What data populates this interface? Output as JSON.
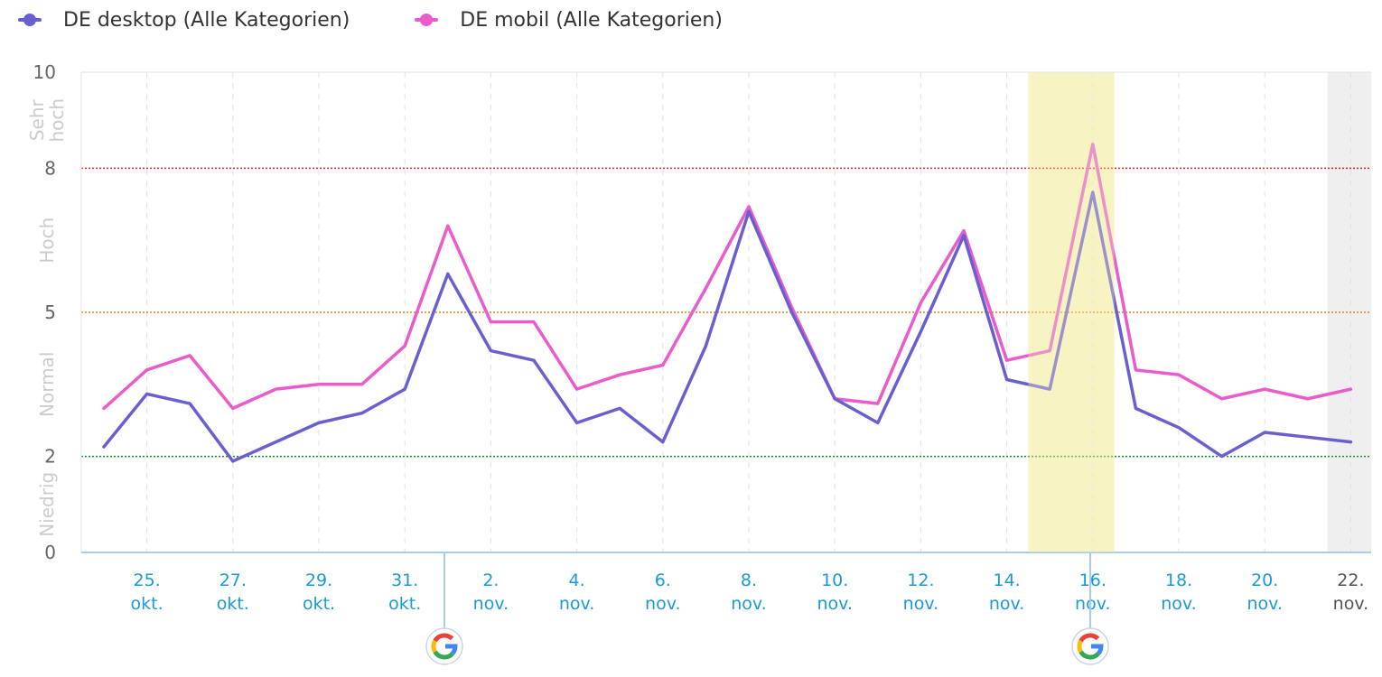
{
  "legend": {
    "desktop": {
      "label": "DE desktop (Alle Kategorien)",
      "color": "#6a5fd0"
    },
    "mobile": {
      "label": "DE mobil (Alle Kategorien)",
      "color": "#ea5bcb"
    }
  },
  "chart_data": {
    "type": "line",
    "ylim": [
      0,
      10
    ],
    "yticks": [
      "0",
      "2",
      "5",
      "8",
      "10"
    ],
    "thresholds": [
      {
        "value": 2,
        "color": "#1a8f1a"
      },
      {
        "value": 5,
        "color": "#e0831a"
      },
      {
        "value": 8,
        "color": "#e02020"
      }
    ],
    "bands": [
      {
        "label": "Niedrig",
        "from": 0,
        "to": 2
      },
      {
        "label": "Normal",
        "from": 2,
        "to": 5
      },
      {
        "label": "Hoch",
        "from": 5,
        "to": 8
      },
      {
        "label": "Sehr hoch",
        "from": 8,
        "to": 10
      }
    ],
    "x_tick_labels": [
      {
        "top": "25.",
        "bottom": "okt."
      },
      {
        "top": "27.",
        "bottom": "okt."
      },
      {
        "top": "29.",
        "bottom": "okt."
      },
      {
        "top": "31.",
        "bottom": "okt."
      },
      {
        "top": "2.",
        "bottom": "nov."
      },
      {
        "top": "4.",
        "bottom": "nov."
      },
      {
        "top": "6.",
        "bottom": "nov."
      },
      {
        "top": "8.",
        "bottom": "nov."
      },
      {
        "top": "10.",
        "bottom": "nov."
      },
      {
        "top": "12.",
        "bottom": "nov."
      },
      {
        "top": "14.",
        "bottom": "nov."
      },
      {
        "top": "16.",
        "bottom": "nov."
      },
      {
        "top": "18.",
        "bottom": "nov."
      },
      {
        "top": "20.",
        "bottom": "nov."
      },
      {
        "top": "22.",
        "bottom": "nov."
      }
    ],
    "x": [
      "24.10",
      "25.10",
      "26.10",
      "27.10",
      "28.10",
      "29.10",
      "30.10",
      "31.10",
      "01.11",
      "02.11",
      "03.11",
      "04.11",
      "05.11",
      "06.11",
      "07.11",
      "08.11",
      "09.11",
      "10.11",
      "11.11",
      "12.11",
      "13.11",
      "14.11",
      "15.11",
      "16.11",
      "17.11",
      "18.11",
      "19.11",
      "20.11",
      "21.11",
      "22.11"
    ],
    "series": [
      {
        "name": "DE desktop (Alle Kategorien)",
        "color": "#6a5fd0",
        "values": [
          2.2,
          3.3,
          3.1,
          1.9,
          2.3,
          2.7,
          2.9,
          3.4,
          5.8,
          4.2,
          4.0,
          2.7,
          3.0,
          2.3,
          4.3,
          7.1,
          5.0,
          3.2,
          2.7,
          4.6,
          6.6,
          3.6,
          3.4,
          7.5,
          3.0,
          2.6,
          2.0,
          2.5,
          2.4,
          2.3
        ]
      },
      {
        "name": "DE mobil (Alle Kategorien)",
        "color": "#ea5bcb",
        "values": [
          3.0,
          3.8,
          4.1,
          3.0,
          3.4,
          3.5,
          3.5,
          4.3,
          6.8,
          4.8,
          4.8,
          3.4,
          3.7,
          3.9,
          5.5,
          7.2,
          5.1,
          3.2,
          3.1,
          5.2,
          6.7,
          4.0,
          4.2,
          8.5,
          3.8,
          3.7,
          3.2,
          3.4,
          3.2,
          3.4
        ]
      }
    ],
    "highlight_range": [
      "15.11",
      "17.11"
    ],
    "highlight_color": "#f7f3c4",
    "partial_range": [
      "21.11",
      "22.11"
    ],
    "partial_color": "#efefef",
    "event_markers": [
      {
        "x": "01.11",
        "icon": "google-icon"
      },
      {
        "x": "16.11",
        "icon": "google-icon"
      }
    ],
    "grid": true,
    "legend_position": "top-left"
  }
}
